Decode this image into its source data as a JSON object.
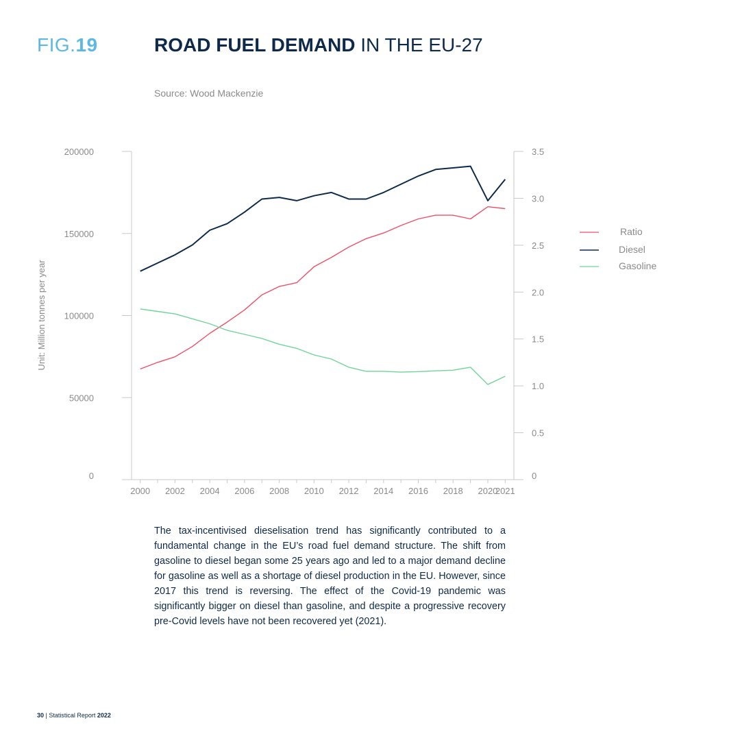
{
  "header": {
    "fig_prefix": "FIG.",
    "fig_number": "19",
    "title_bold": "ROAD FUEL DEMAND",
    "title_rest": " IN THE EU-27",
    "source": "Source: Wood Mackenzie"
  },
  "chart_data": {
    "type": "line",
    "ylabel": "Unit: Million tonnes per year",
    "x": [
      2000,
      2001,
      2002,
      2003,
      2004,
      2005,
      2006,
      2007,
      2008,
      2009,
      2010,
      2011,
      2012,
      2013,
      2014,
      2015,
      2016,
      2017,
      2018,
      2019,
      2020,
      2021
    ],
    "x_ticks": [
      "2000",
      "2002",
      "2004",
      "2006",
      "2008",
      "2010",
      "2012",
      "2014",
      "2016",
      "2018",
      "2020",
      "2021"
    ],
    "x_tick_values": [
      2000,
      2002,
      2004,
      2006,
      2008,
      2010,
      2012,
      2014,
      2016,
      2018,
      2020,
      2021
    ],
    "xlim": [
      1999.5,
      2021.5
    ],
    "y_left_ticks": [
      "200000",
      "150000",
      "100000",
      "50000",
      "0"
    ],
    "y_left_tick_values": [
      200000,
      150000,
      100000,
      50000,
      0
    ],
    "ylim_left": [
      0,
      200000
    ],
    "y_right_ticks": [
      "3.5",
      "3.0",
      "2.5",
      "2.0",
      "1.5",
      "1.0",
      "0.5",
      "0"
    ],
    "y_right_tick_values": [
      3.5,
      3.0,
      2.5,
      2.0,
      1.5,
      1.0,
      0.5,
      0
    ],
    "ylim_right": [
      0,
      3.5
    ],
    "series": [
      {
        "name": "Ratio",
        "axis": "right",
        "color": "#ef4f68",
        "values": [
          1.18,
          1.25,
          1.31,
          1.42,
          1.56,
          1.68,
          1.81,
          1.97,
          2.06,
          2.1,
          2.27,
          2.37,
          2.48,
          2.57,
          2.63,
          2.71,
          2.78,
          2.82,
          2.82,
          2.78,
          2.91,
          2.89
        ]
      },
      {
        "name": "Diesel",
        "axis": "left",
        "color": "#0d2a4a",
        "values": [
          127000,
          132000,
          137000,
          143000,
          152000,
          156000,
          163000,
          171000,
          172000,
          170000,
          173000,
          175000,
          171000,
          171000,
          175000,
          180000,
          185000,
          189000,
          190000,
          191000,
          170000,
          183000
        ]
      },
      {
        "name": "Gasoline",
        "axis": "left",
        "color": "#6fd49a",
        "values": [
          104000,
          102500,
          101000,
          98000,
          95000,
          91000,
          88500,
          86000,
          82500,
          80000,
          76000,
          73500,
          68500,
          66000,
          66000,
          65500,
          65800,
          66300,
          66700,
          68500,
          58000,
          63000
        ]
      }
    ],
    "legend_position": "right",
    "grid": false
  },
  "body": {
    "paragraph": "The tax-incentivised dieselisation trend has significantly contributed to a fundamental change in the EU’s road fuel demand structure. The shift from gasoline to diesel began some 25 years ago and led to a major demand decline for gasoline as well as a shortage of diesel production in the EU. However, since 2017 this trend is reversing. The effect of the Covid-19 pandemic was significantly bigger on diesel than gasoline, and despite a progressive recovery pre-Covid levels have not been recovered yet (2021)."
  },
  "footer": {
    "page_number": "30",
    "separator": " | Statistical Report ",
    "year": "2022"
  }
}
